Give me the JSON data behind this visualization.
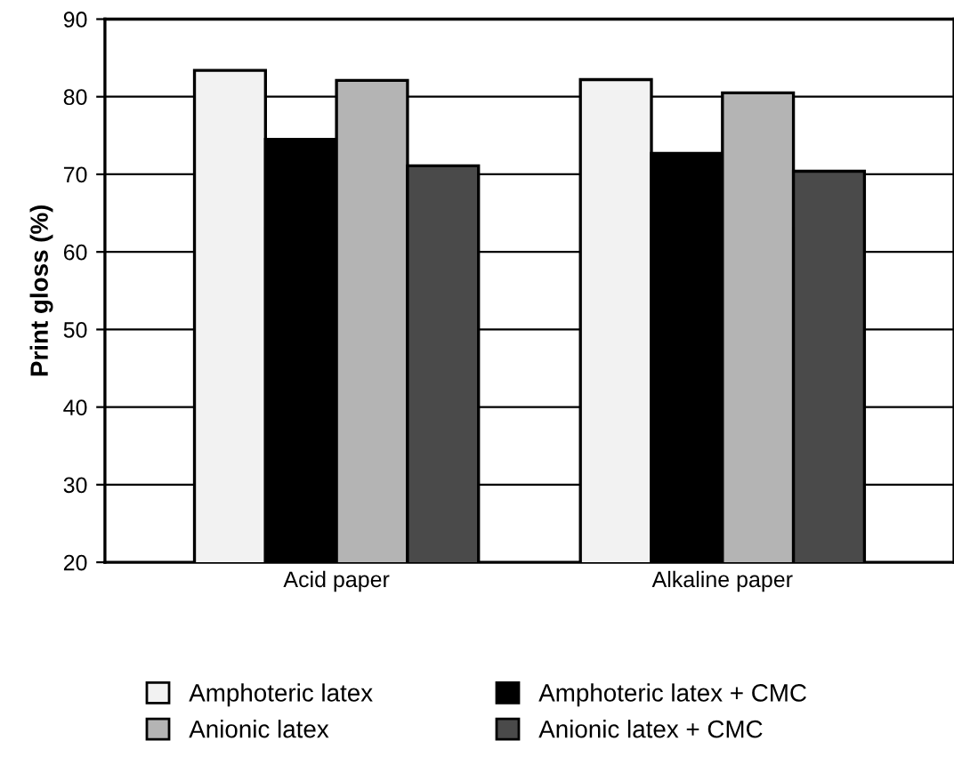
{
  "chart_data": {
    "type": "bar",
    "ylabel": "Print gloss (%)",
    "categories": [
      "Acid paper",
      "Alkaline paper"
    ],
    "series": [
      {
        "name": "Amphoteric latex",
        "color": "#f2f2f2",
        "values": [
          83.4,
          82.2
        ]
      },
      {
        "name": "Amphoteric latex + CMC",
        "color": "#000000",
        "values": [
          74.5,
          72.7
        ]
      },
      {
        "name": "Anionic latex",
        "color": "#b4b4b4",
        "values": [
          82.1,
          80.5
        ]
      },
      {
        "name": "Anionic latex + CMC",
        "color": "#4a4a4a",
        "values": [
          71.1,
          70.4
        ]
      }
    ],
    "ylim": [
      20,
      90
    ],
    "yticks": [
      20,
      30,
      40,
      50,
      60,
      70,
      80,
      90
    ],
    "grid": "y",
    "legend": "bottom"
  }
}
